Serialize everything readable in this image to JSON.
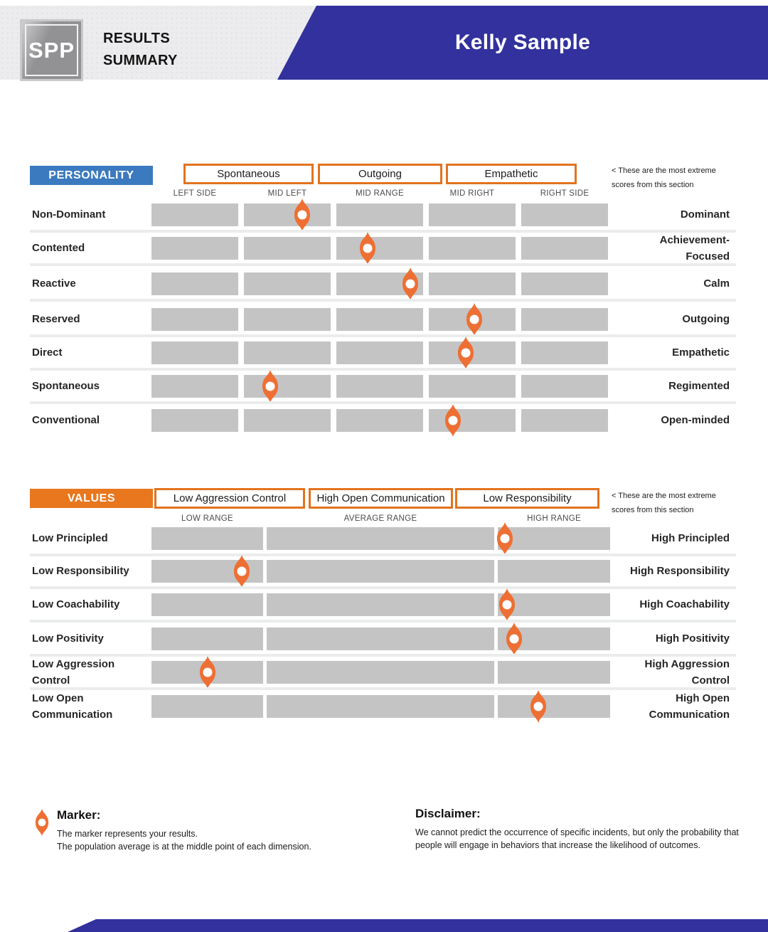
{
  "header": {
    "logo_text": "SPP",
    "title_line1": "RESULTS",
    "title_line2": "SUMMARY",
    "person_name": "Kelly Sample"
  },
  "personality": {
    "section_label": "PERSONALITY",
    "extreme_boxes": [
      "Spontaneous",
      "Outgoing",
      "Empathetic"
    ],
    "note_line1": "< These are the most extreme",
    "note_line2": "scores from this section",
    "column_headers": [
      "LEFT SIDE",
      "MID LEFT",
      "MID RANGE",
      "MID RIGHT",
      "RIGHT SIDE"
    ],
    "rows": [
      {
        "left": "Non-Dominant",
        "right": "Dominant",
        "marker_pct": 33.0
      },
      {
        "left": "Contented",
        "right": "Achievement-Focused",
        "marker_pct": 47.3
      },
      {
        "left": "Reactive",
        "right": "Calm",
        "marker_pct": 56.7
      },
      {
        "left": "Reserved",
        "right": "Outgoing",
        "marker_pct": 70.7
      },
      {
        "left": "Direct",
        "right": "Empathetic",
        "marker_pct": 68.8
      },
      {
        "left": "Spontaneous",
        "right": "Regimented",
        "marker_pct": 26.0
      },
      {
        "left": "Conventional",
        "right": "Open-minded",
        "marker_pct": 66.0
      }
    ]
  },
  "values": {
    "section_label": "VALUES",
    "extreme_boxes": [
      "Low Aggression Control",
      "High Open Communication",
      "Low Responsibility"
    ],
    "note_line1": "< These are the most extreme",
    "note_line2": "scores from this section",
    "column_headers": [
      "LOW RANGE",
      "AVERAGE RANGE",
      "HIGH RANGE"
    ],
    "rows": [
      {
        "left": "Low Principled",
        "right": "High Principled",
        "marker_pct": 77.0
      },
      {
        "left": "Low Responsibility",
        "right": "High Responsibility",
        "marker_pct": 19.7
      },
      {
        "left": "Low Coachability",
        "right": "High Coachability",
        "marker_pct": 77.5
      },
      {
        "left": "Low Positivity",
        "right": "High Positivity",
        "marker_pct": 79.1
      },
      {
        "left": "Low Aggression Control",
        "right": "High Aggression Control",
        "marker_pct": 12.2
      },
      {
        "left": "Low Open Communication",
        "right": "High Open Communication",
        "marker_pct": 84.3
      }
    ]
  },
  "legend": {
    "marker_title": "Marker:",
    "marker_line1": "The marker represents your results.",
    "marker_line2": "The population average is at the middle point of each dimension.",
    "disclaimer_title": "Disclaimer:",
    "disclaimer_text": "We cannot predict the occurrence of specific incidents, but only the probability that people will engage in behaviors that increase the likelihood of outcomes."
  },
  "colors": {
    "banner_blue": "#32319D",
    "personality_blue": "#3B7ABF",
    "values_orange": "#E8771E",
    "box_border_orange": "#E2731F",
    "marker_orange": "#EE6F33",
    "bar_gray": "#C4C4C4"
  }
}
